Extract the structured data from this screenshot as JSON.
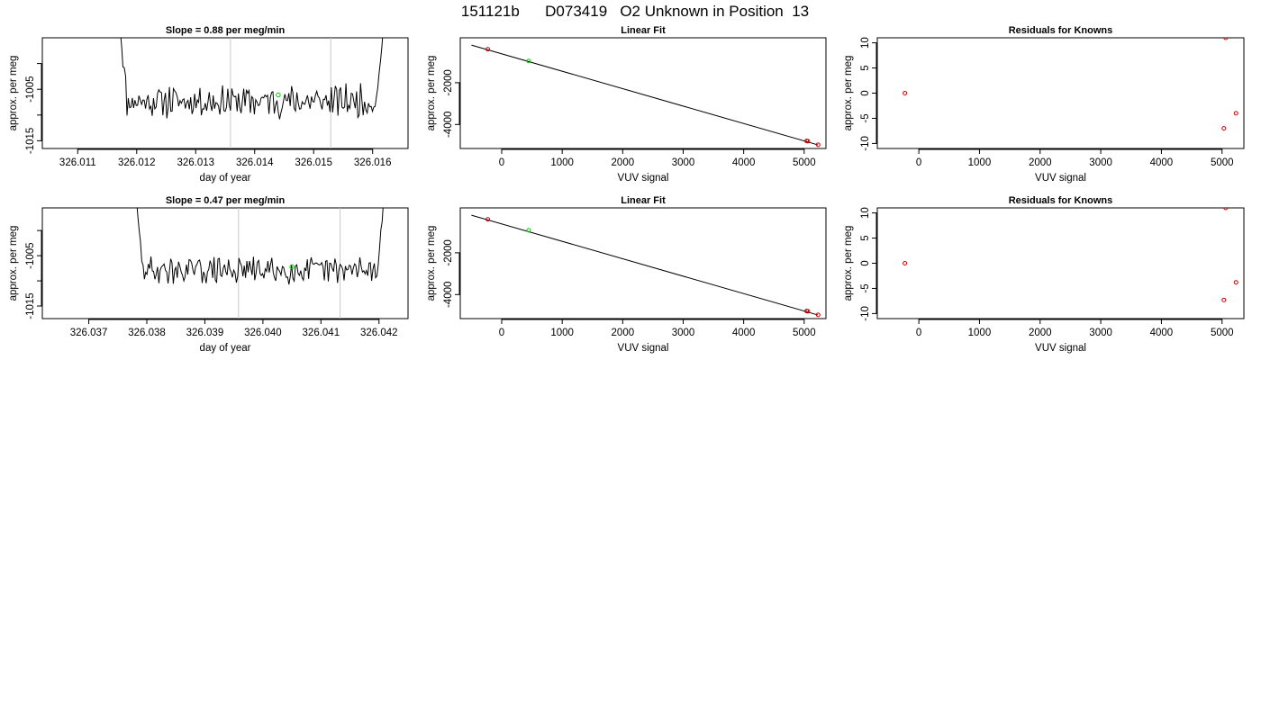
{
  "page_title": "151121b      D073419   O2 Unknown in Position  13",
  "colors": {
    "trace": "#000000",
    "marker": "#00cc00",
    "known": "#cc0000",
    "window_line": "#c8c8c8",
    "fit_line": "#000000"
  },
  "chart_data": [
    {
      "id": "ts1",
      "type": "line",
      "title": "Slope =  0.88  per meg/min",
      "xlabel": "day of year",
      "ylabel": "approx. per meg",
      "xlim": [
        326.0104,
        326.0166
      ],
      "ylim": [
        -1016.5,
        -995
      ],
      "xticks": [
        326.011,
        326.012,
        326.013,
        326.014,
        326.015,
        326.016
      ],
      "xtick_labels": [
        "326.011",
        "326.012",
        "326.013",
        "326.014",
        "326.015",
        "326.016"
      ],
      "yticks": [
        -1015,
        -1010,
        -1005,
        -1000
      ],
      "ytick_labels": [
        "-1015",
        "",
        "-1005",
        ""
      ],
      "window": [
        326.01359,
        326.01529
      ],
      "x_start": 326.0117,
      "x_end": 326.0162,
      "n": 200,
      "seed": 11,
      "base": -1007.3,
      "noise": 2.6,
      "marker": {
        "x": 326.0144,
        "y": -1006.1
      }
    },
    {
      "id": "fit1",
      "type": "line",
      "title": "Linear Fit",
      "xlabel": "VUV signal",
      "ylabel": "approx. per meg",
      "xlim": [
        -685,
        5360
      ],
      "ylim": [
        -5150,
        150
      ],
      "xticks": [
        0,
        1000,
        2000,
        3000,
        4000,
        5000
      ],
      "xtick_labels": [
        "0",
        "1000",
        "2000",
        "3000",
        "4000",
        "5000"
      ],
      "yticks": [
        -4000,
        -2000
      ],
      "ytick_labels": [
        "-4000",
        "-2000"
      ],
      "fit_line": {
        "x": [
          -500,
          5230
        ],
        "y": [
          -200,
          -4980
        ]
      },
      "knowns": {
        "x": [
          -230,
          5040,
          5060,
          5230
        ],
        "y": [
          -400,
          -4790,
          -4800,
          -4970
        ]
      },
      "unknown": {
        "x": 445,
        "y": -960
      }
    },
    {
      "id": "res1",
      "type": "scatter",
      "title": "Residuals for Knowns",
      "xlabel": "VUV signal",
      "ylabel": "approx. per meg",
      "xlim": [
        -685,
        5360
      ],
      "ylim": [
        -11,
        11
      ],
      "xticks": [
        0,
        1000,
        2000,
        3000,
        4000,
        5000
      ],
      "xtick_labels": [
        "0",
        "1000",
        "2000",
        "3000",
        "4000",
        "5000"
      ],
      "yticks": [
        -10,
        -5,
        0,
        5,
        10
      ],
      "ytick_labels": [
        "-10",
        "-5",
        "0",
        "5",
        "10"
      ],
      "points": {
        "x": [
          -230,
          5030,
          5060,
          5230
        ],
        "y": [
          0,
          -7,
          11,
          -4
        ]
      }
    },
    {
      "id": "ts2",
      "type": "line",
      "title": "Slope =  0.47  per meg/min",
      "xlabel": "day of year",
      "ylabel": "approx. per meg",
      "xlim": [
        326.0362,
        326.0425
      ],
      "ylim": [
        -1017.5,
        -995.5
      ],
      "xticks": [
        326.037,
        326.038,
        326.039,
        326.04,
        326.041,
        326.042
      ],
      "xtick_labels": [
        "326.037",
        "326.038",
        "326.039",
        "326.040",
        "326.041",
        "326.042"
      ],
      "yticks": [
        -1015,
        -1010,
        -1005,
        -1000
      ],
      "ytick_labels": [
        "-1015",
        "",
        "-1005",
        ""
      ],
      "window": [
        326.03958,
        326.04133
      ],
      "x_start": 326.0378,
      "x_end": 326.0421,
      "n": 190,
      "seed": 29,
      "base": -1007.9,
      "noise": 2.2,
      "marker": {
        "x": 326.0405,
        "y": -1007.2
      }
    },
    {
      "id": "fit2",
      "type": "line",
      "title": "Linear Fit",
      "xlabel": "VUV signal",
      "ylabel": "approx. per meg",
      "xlim": [
        -685,
        5360
      ],
      "ylim": [
        -5150,
        150
      ],
      "xticks": [
        0,
        1000,
        2000,
        3000,
        4000,
        5000
      ],
      "xtick_labels": [
        "0",
        "1000",
        "2000",
        "3000",
        "4000",
        "5000"
      ],
      "yticks": [
        -4000,
        -2000
      ],
      "ytick_labels": [
        "-4000",
        "-2000"
      ],
      "fit_line": {
        "x": [
          -500,
          5230
        ],
        "y": [
          -200,
          -4980
        ]
      },
      "knowns": {
        "x": [
          -230,
          5040,
          5060,
          5230
        ],
        "y": [
          -400,
          -4790,
          -4800,
          -4970
        ]
      },
      "unknown": {
        "x": 445,
        "y": -920
      }
    },
    {
      "id": "res2",
      "type": "scatter",
      "title": "Residuals for Knowns",
      "xlabel": "VUV signal",
      "ylabel": "approx. per meg",
      "xlim": [
        -685,
        5360
      ],
      "ylim": [
        -11,
        11
      ],
      "xticks": [
        0,
        1000,
        2000,
        3000,
        4000,
        5000
      ],
      "xtick_labels": [
        "0",
        "1000",
        "2000",
        "3000",
        "4000",
        "5000"
      ],
      "yticks": [
        -10,
        -5,
        0,
        5,
        10
      ],
      "ytick_labels": [
        "-10",
        "-5",
        "0",
        "5",
        "10"
      ],
      "points": {
        "x": [
          -230,
          5030,
          5060,
          5230
        ],
        "y": [
          0,
          -7.3,
          11,
          -3.8
        ]
      }
    }
  ]
}
